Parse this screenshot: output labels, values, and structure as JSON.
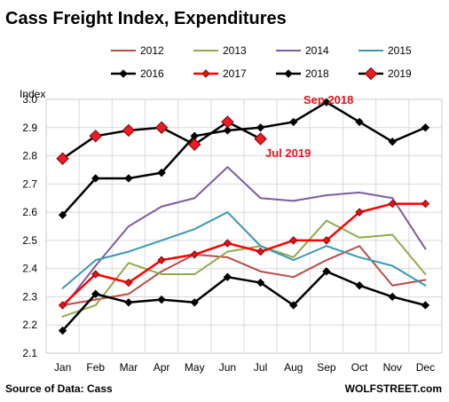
{
  "chart_data": {
    "type": "line",
    "title": "Cass Freight Index, Expenditures",
    "ylabel": "Index",
    "xlabel": "",
    "ylim": [
      2.1,
      3.0
    ],
    "yticks": [
      "2.1",
      "2.2",
      "2.3",
      "2.4",
      "2.5",
      "2.6",
      "2.7",
      "2.8",
      "2.9",
      "3.0"
    ],
    "categories": [
      "Jan",
      "Feb",
      "Mar",
      "Apr",
      "May",
      "Jun",
      "Jul",
      "Aug",
      "Sep",
      "Oct",
      "Nov",
      "Dec"
    ],
    "grid": true,
    "series": [
      {
        "name": "2012",
        "color": "#b94a48",
        "width": 2,
        "marker": "none",
        "values": [
          2.27,
          2.29,
          2.31,
          2.39,
          2.45,
          2.44,
          2.39,
          2.37,
          2.43,
          2.48,
          2.34,
          2.36
        ]
      },
      {
        "name": "2013",
        "color": "#8faa4a",
        "width": 2,
        "marker": "none",
        "values": [
          2.23,
          2.27,
          2.42,
          2.38,
          2.38,
          2.46,
          2.48,
          2.44,
          2.57,
          2.51,
          2.52,
          2.38
        ]
      },
      {
        "name": "2014",
        "color": "#7d5b9f",
        "width": 2,
        "marker": "none",
        "values": [
          2.26,
          2.41,
          2.55,
          2.62,
          2.65,
          2.76,
          2.65,
          2.64,
          2.66,
          2.67,
          2.65,
          2.47
        ]
      },
      {
        "name": "2015",
        "color": "#3a98b2",
        "width": 2,
        "marker": "none",
        "values": [
          2.33,
          2.43,
          2.46,
          2.5,
          2.54,
          2.6,
          2.48,
          2.43,
          2.48,
          2.44,
          2.41,
          2.34
        ]
      },
      {
        "name": "2016",
        "color": "#000000",
        "width": 2.5,
        "marker": "diamond-black",
        "values": [
          2.18,
          2.31,
          2.28,
          2.29,
          2.28,
          2.37,
          2.35,
          2.27,
          2.39,
          2.34,
          2.3,
          2.27
        ]
      },
      {
        "name": "2017",
        "color": "#ff0000",
        "width": 2.5,
        "marker": "diamond-red",
        "values": [
          2.27,
          2.38,
          2.35,
          2.43,
          2.45,
          2.49,
          2.46,
          2.5,
          2.5,
          2.6,
          2.63,
          2.63
        ]
      },
      {
        "name": "2018",
        "color": "#000000",
        "width": 2.5,
        "marker": "diamond-black",
        "values": [
          2.59,
          2.72,
          2.72,
          2.74,
          2.87,
          2.89,
          2.9,
          2.92,
          2.99,
          2.92,
          2.85,
          2.9
        ]
      },
      {
        "name": "2019",
        "color": "#000000",
        "width": 2.5,
        "marker": "diamond-red-large",
        "values": [
          2.79,
          2.87,
          2.89,
          2.9,
          2.84,
          2.92,
          2.86,
          null,
          null,
          null,
          null,
          null
        ]
      }
    ],
    "annotations": [
      {
        "text": "Sep 2018"
      },
      {
        "text": "Jul 2019"
      }
    ],
    "source": "Source of Data: Cass",
    "brand": "WOLFSTREET.com"
  }
}
